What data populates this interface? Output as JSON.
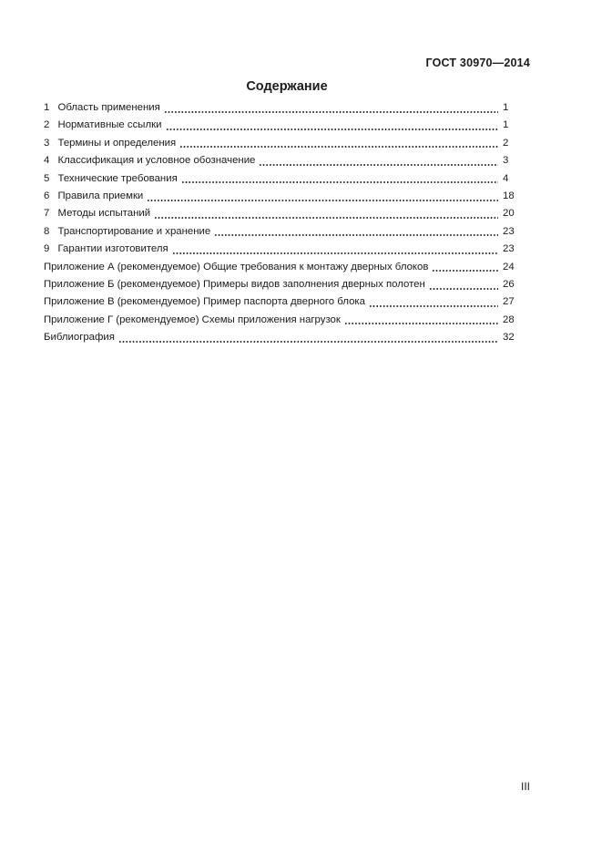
{
  "page": {
    "header": "ГОСТ 30970—2014",
    "title": "Содержание",
    "folio": "III"
  },
  "toc": {
    "entries": [
      {
        "num": "1",
        "label": "Область применения",
        "page": "1"
      },
      {
        "num": "2",
        "label": "Нормативные ссылки",
        "page": "1"
      },
      {
        "num": "3",
        "label": "Термины и определения",
        "page": "2"
      },
      {
        "num": "4",
        "label": "Классификация и условное обозначение",
        "page": "3"
      },
      {
        "num": "5",
        "label": "Технические требования",
        "page": "4"
      },
      {
        "num": "6",
        "label": "Правила приемки",
        "page": "18"
      },
      {
        "num": "7",
        "label": "Методы испытаний",
        "page": "20"
      },
      {
        "num": "8",
        "label": "Транспортирование и хранение",
        "page": "23"
      },
      {
        "num": "9",
        "label": "Гарантии изготовителя",
        "page": "23"
      },
      {
        "num": "",
        "label": "Приложение А (рекомендуемое) Общие требования к монтажу дверных блоков",
        "page": "24"
      },
      {
        "num": "",
        "label": "Приложение Б (рекомендуемое) Примеры видов заполнения дверных полотен",
        "page": "26"
      },
      {
        "num": "",
        "label": "Приложение В (рекомендуемое) Пример паспорта дверного блока",
        "page": "27"
      },
      {
        "num": "",
        "label": "Приложение Г (рекомендуемое) Схемы приложения нагрузок",
        "page": "28"
      },
      {
        "num": "",
        "label": "Библиография",
        "page": "32"
      }
    ]
  },
  "colors": {
    "text": "#1b1b1b",
    "background": "#ffffff"
  }
}
